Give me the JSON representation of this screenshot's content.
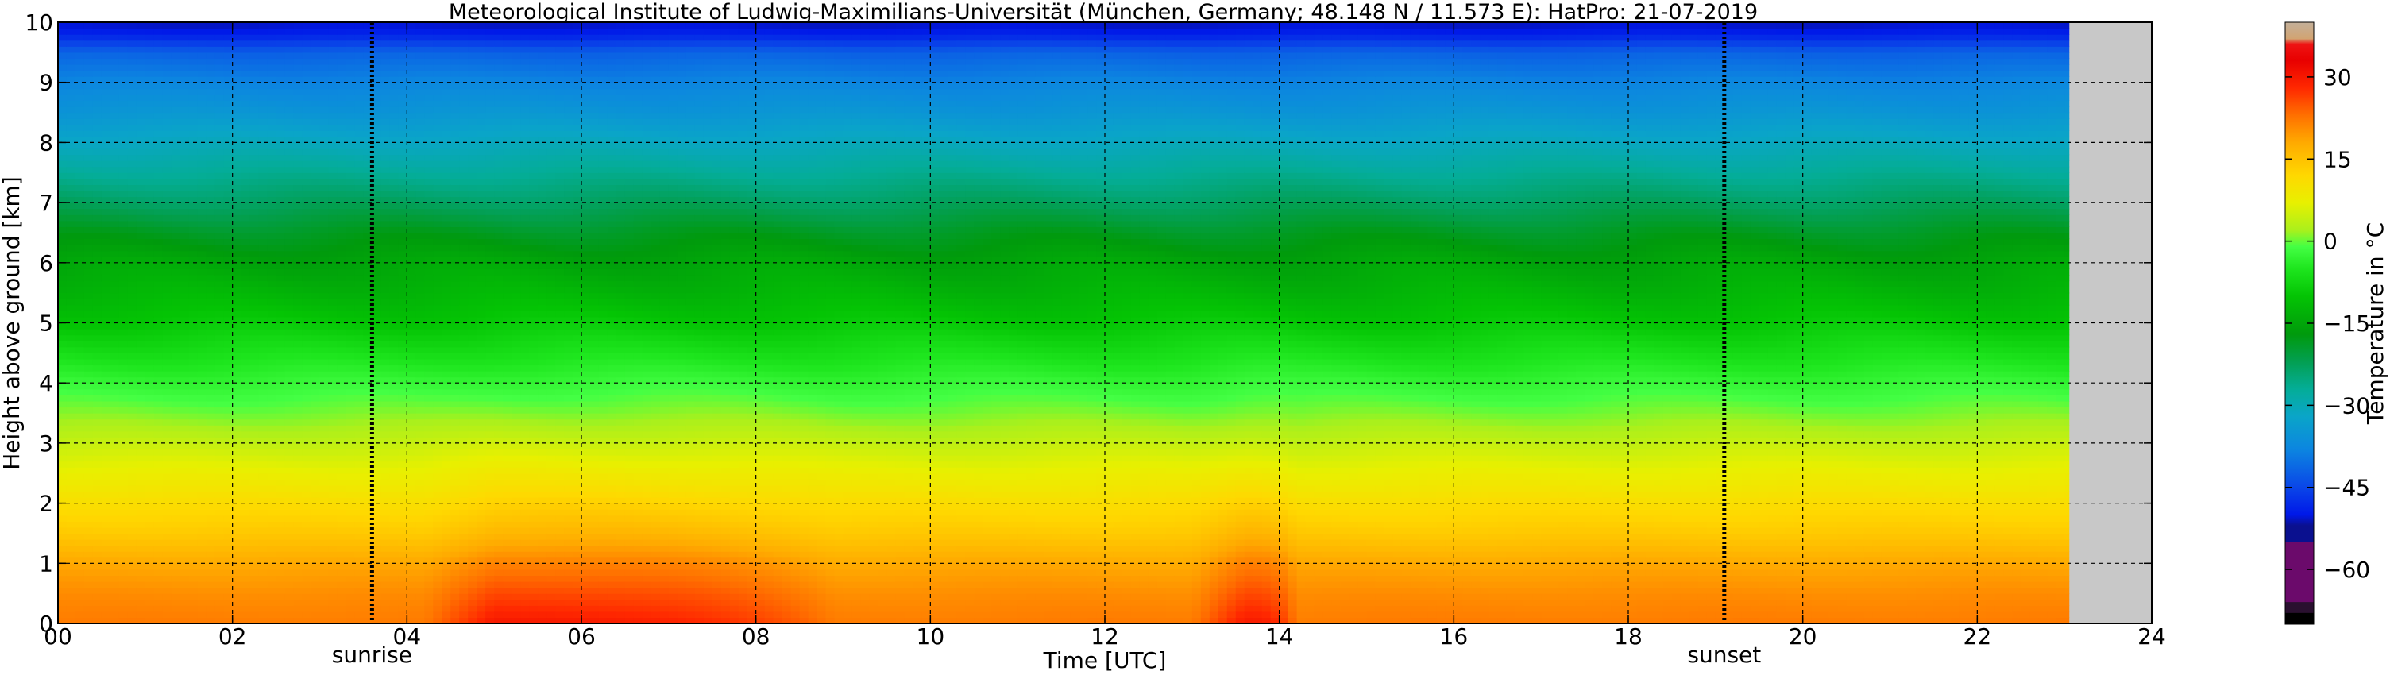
{
  "chart_data": {
    "type": "heatmap",
    "title": "Meteorological Institute of Ludwig-Maximilians-Universität (München, Germany; 48.148 N / 11.573 E):    HatPro: 21-07-2019",
    "xlabel": "Time [UTC]",
    "ylabel": "Height above ground [km]",
    "xlim": [
      0,
      24
    ],
    "ylim": [
      0,
      10
    ],
    "x_ticks": [
      0,
      2,
      4,
      6,
      8,
      10,
      12,
      14,
      16,
      18,
      20,
      22,
      24
    ],
    "x_tick_labels": [
      "00",
      "02",
      "04",
      "06",
      "08",
      "10",
      "12",
      "14",
      "16",
      "18",
      "20",
      "22",
      "24"
    ],
    "y_ticks": [
      0,
      1,
      2,
      3,
      4,
      5,
      6,
      7,
      8,
      9,
      10
    ],
    "y_tick_labels": [
      "0",
      "1",
      "2",
      "3",
      "4",
      "5",
      "6",
      "7",
      "8",
      "9",
      "10"
    ],
    "grid": true,
    "data_end_time": 23.05,
    "no_data_color": "#c8c8c8",
    "events": [
      {
        "label": "sunrise",
        "time": 3.6
      },
      {
        "label": "sunset",
        "time": 19.1
      }
    ],
    "heat_events": [
      {
        "start": 4.2,
        "peak": 5.0,
        "end": 8.9,
        "strength": 8
      },
      {
        "start": 13.0,
        "peak": 13.6,
        "end": 14.2,
        "strength": 8
      }
    ],
    "colorbar": {
      "label": "Temperature in °C",
      "range": [
        -70,
        40
      ],
      "ticks": [
        -60,
        -45,
        -30,
        -15,
        0,
        15,
        30
      ],
      "tick_labels": [
        "−60",
        "−45",
        "−30",
        "−15",
        "0",
        "15",
        "30"
      ],
      "stops": [
        {
          "v": -70,
          "c": "#000000"
        },
        {
          "v": -68,
          "c": "#000000"
        },
        {
          "v": -67.9,
          "c": "#2a1030"
        },
        {
          "v": -66,
          "c": "#2a1030"
        },
        {
          "v": -65.9,
          "c": "#6b0a6b"
        },
        {
          "v": -55,
          "c": "#6b0a6b"
        },
        {
          "v": -54.9,
          "c": "#0a108f"
        },
        {
          "v": -52,
          "c": "#0a108f"
        },
        {
          "v": -50,
          "c": "#0018e8"
        },
        {
          "v": -45,
          "c": "#0a46e8"
        },
        {
          "v": -38,
          "c": "#0c86e0"
        },
        {
          "v": -32,
          "c": "#0aa5c8"
        },
        {
          "v": -27,
          "c": "#04ad97"
        },
        {
          "v": -22,
          "c": "#039f52"
        },
        {
          "v": -17,
          "c": "#009a0c"
        },
        {
          "v": -10,
          "c": "#04c404"
        },
        {
          "v": -5,
          "c": "#1ee61e"
        },
        {
          "v": -1,
          "c": "#44ff44"
        },
        {
          "v": 2,
          "c": "#aaf01c"
        },
        {
          "v": 7,
          "c": "#e8f000"
        },
        {
          "v": 12,
          "c": "#ffd800"
        },
        {
          "v": 18,
          "c": "#ffaa00"
        },
        {
          "v": 23,
          "c": "#ff7000"
        },
        {
          "v": 28,
          "c": "#ff2800"
        },
        {
          "v": 33,
          "c": "#e80000"
        },
        {
          "v": 36,
          "c": "#ee1414"
        },
        {
          "v": 37,
          "c": "#d2a472"
        },
        {
          "v": 40,
          "c": "#c3b09a"
        }
      ]
    },
    "profile": {
      "heights": [
        0,
        0.5,
        1,
        1.5,
        2,
        2.5,
        3,
        3.5,
        4,
        4.5,
        5,
        5.5,
        6,
        6.5,
        7,
        7.5,
        8,
        8.5,
        9,
        9.5,
        9.8,
        10
      ],
      "temps": [
        22,
        20.5,
        18,
        14,
        11,
        7.5,
        4,
        0.5,
        -2.5,
        -6,
        -9.5,
        -12.5,
        -15,
        -18.5,
        -23,
        -27,
        -31,
        -35,
        -38,
        -42,
        -49,
        -51
      ]
    }
  }
}
